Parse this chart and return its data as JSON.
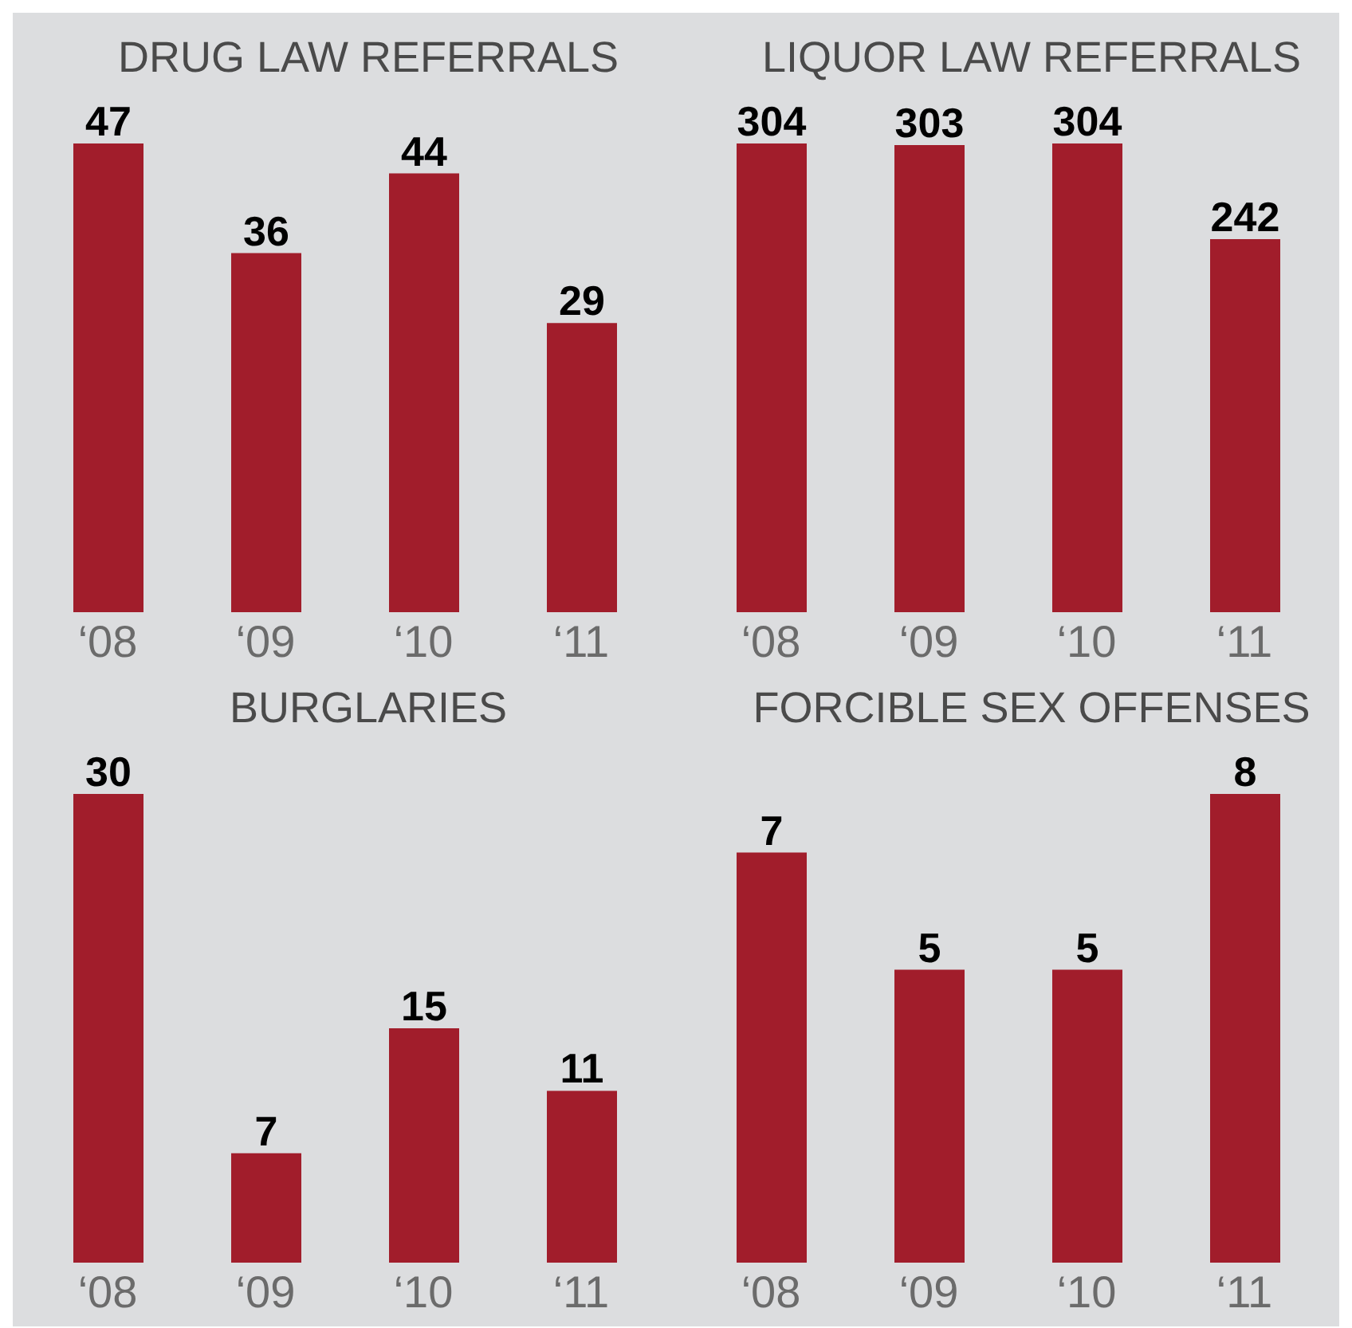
{
  "chart_data": [
    {
      "type": "bar",
      "title": "DRUG LAW REFERRALS",
      "categories": [
        "‘08",
        "‘09",
        "‘10",
        "‘11"
      ],
      "values": [
        47,
        36,
        44,
        29
      ],
      "color": "#a11d2b",
      "data_labels": true,
      "tick_labels": "x",
      "grid": false,
      "legend": false
    },
    {
      "type": "bar",
      "title": "LIQUOR LAW REFERRALS",
      "categories": [
        "‘08",
        "‘09",
        "‘10",
        "‘11"
      ],
      "values": [
        304,
        303,
        304,
        242
      ],
      "color": "#a11d2b",
      "data_labels": true,
      "tick_labels": "x",
      "grid": false,
      "legend": false
    },
    {
      "type": "bar",
      "title": "BURGLARIES",
      "categories": [
        "‘08",
        "‘09",
        "‘10",
        "‘11"
      ],
      "values": [
        30,
        7,
        15,
        11
      ],
      "color": "#a11d2b",
      "data_labels": true,
      "tick_labels": "x",
      "grid": false,
      "legend": false
    },
    {
      "type": "bar",
      "title": "FORCIBLE SEX OFFENSES",
      "categories": [
        "‘08",
        "‘09",
        "‘10",
        "‘11"
      ],
      "values": [
        7,
        5,
        5,
        8
      ],
      "color": "#a11d2b",
      "data_labels": true,
      "tick_labels": "x",
      "grid": false,
      "legend": false
    }
  ]
}
